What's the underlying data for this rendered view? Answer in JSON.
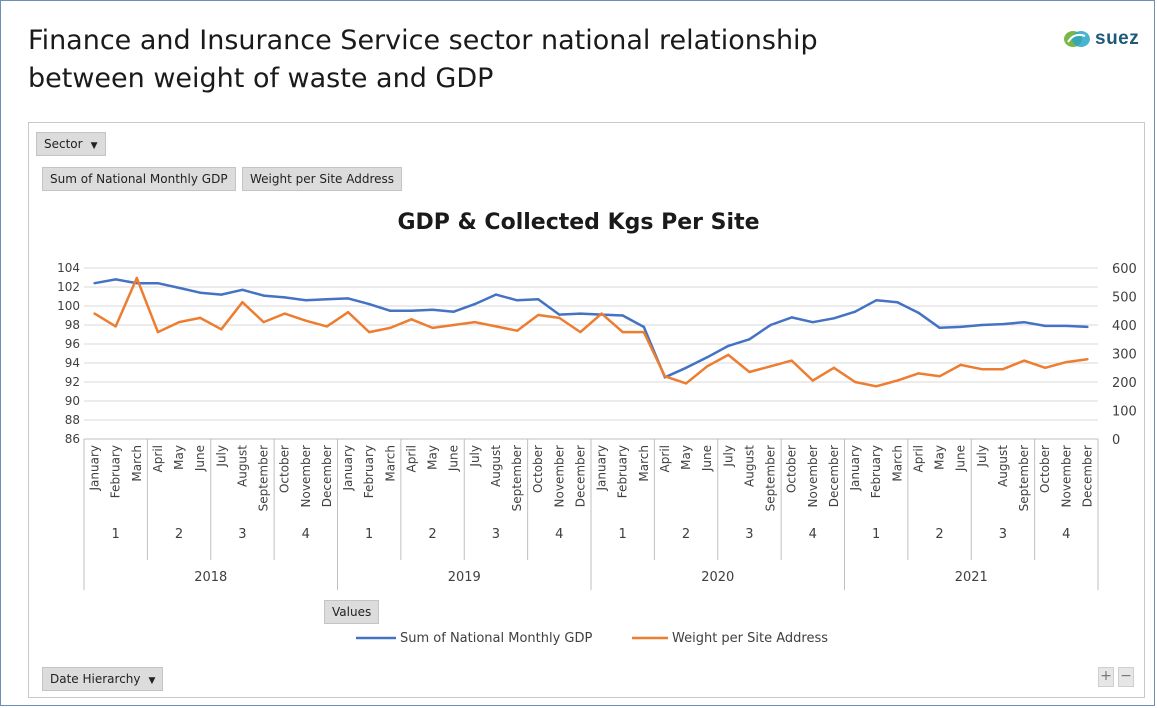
{
  "slide": {
    "title_line1": "Finance and Insurance Service sector national relationship",
    "title_line2": "between weight of waste and GDP",
    "logo_text": "suez"
  },
  "pivot": {
    "sector_filter": "Sector",
    "value_field_1": "Sum of National Monthly GDP",
    "value_field_2": "Weight per Site Address",
    "values_label": "Values",
    "date_filter": "Date Hierarchy",
    "zoom_in": "+",
    "zoom_out": "−"
  },
  "colors": {
    "gdp": "#4472c4",
    "weight": "#ed7d31",
    "grid": "#d9d9d9",
    "axis_text": "#595959"
  },
  "chart_data": {
    "type": "line",
    "title": "GDP & Collected Kgs Per Site",
    "years": [
      "2018",
      "2019",
      "2020",
      "2021"
    ],
    "quarters": [
      "1",
      "2",
      "3",
      "4"
    ],
    "months": [
      "January",
      "February",
      "March",
      "April",
      "May",
      "June",
      "July",
      "August",
      "September",
      "October",
      "November",
      "December"
    ],
    "y_left": {
      "min": 86,
      "max": 104,
      "ticks": [
        86,
        88,
        90,
        92,
        94,
        96,
        98,
        100,
        102,
        104
      ]
    },
    "y_right": {
      "min": 0,
      "max": 600,
      "ticks": [
        0,
        100,
        200,
        300,
        400,
        500,
        600
      ]
    },
    "series": [
      {
        "name": "Sum of National Monthly GDP",
        "axis": "left",
        "values": [
          102.4,
          102.8,
          102.4,
          102.4,
          101.9,
          101.4,
          101.2,
          101.7,
          101.1,
          100.9,
          100.6,
          100.7,
          100.8,
          100.2,
          99.5,
          99.5,
          99.6,
          99.4,
          100.2,
          101.2,
          100.6,
          100.7,
          99.1,
          99.2,
          99.1,
          99.0,
          97.8,
          92.5,
          93.5,
          94.6,
          95.8,
          96.5,
          98.0,
          98.8,
          98.3,
          98.7,
          99.4,
          100.6,
          100.4,
          99.3,
          97.7,
          97.8,
          98.0,
          98.1,
          98.3,
          97.9,
          97.9,
          97.8
        ]
      },
      {
        "name": "Weight per Site Address",
        "axis": "right",
        "values": [
          440,
          395,
          565,
          375,
          410,
          425,
          385,
          480,
          410,
          440,
          415,
          395,
          445,
          375,
          390,
          420,
          390,
          400,
          410,
          395,
          380,
          435,
          425,
          375,
          440,
          375,
          375,
          220,
          195,
          255,
          295,
          235,
          255,
          275,
          205,
          250,
          200,
          185,
          205,
          230,
          220,
          260,
          245,
          245,
          275,
          250,
          270,
          280
        ]
      }
    ],
    "legend_position": "bottom",
    "grid": true
  }
}
